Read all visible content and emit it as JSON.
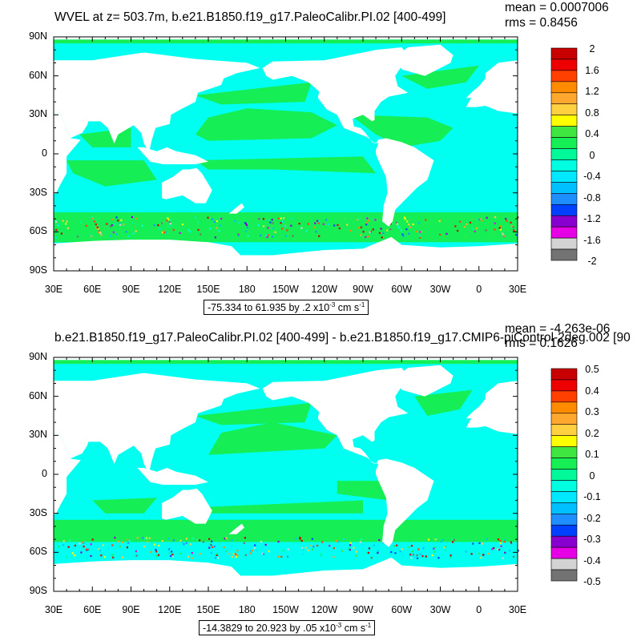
{
  "panels": [
    {
      "title": "WVEL at z= 503.7m, b.e21.B1850.f19_g17.PaleoCalibr.PI.02 [400-499]",
      "mean": "mean = 0.0007006",
      "rms": "rms = 0.8456",
      "range_prefix": "-75.334 to 61.935 by .2 x10",
      "range_exp": "-3",
      "range_unit": " cm s",
      "range_unit_exp": "-1",
      "colorbar_labels": [
        "2",
        "1.6",
        "1.2",
        "0.8",
        "0.4",
        "0",
        "-0.4",
        "-0.8",
        "-1.2",
        "-1.6",
        "-2"
      ]
    },
    {
      "title": "b.e21.B1850.f19_g17.PaleoCalibr.PI.02 [400-499] - b.e21.B1850.f19_g17.CMIP6-piControl-2deg.002 [90",
      "mean": "mean = -4.263e-06",
      "rms": "rms = 0.1626",
      "range_prefix": "-14.3829 to 20.923 by .05 x10",
      "range_exp": "-3",
      "range_unit": " cm s",
      "range_unit_exp": "-1",
      "colorbar_labels": [
        "0.5",
        "0.4",
        "0.3",
        "0.2",
        "0.1",
        "0",
        "-0.1",
        "-0.2",
        "-0.3",
        "-0.4",
        "-0.5"
      ]
    }
  ],
  "axes": {
    "lat_labels": [
      "90N",
      "60N",
      "30N",
      "0",
      "30S",
      "60S",
      "90S"
    ],
    "lon_labels": [
      "30E",
      "60E",
      "90E",
      "120E",
      "150E",
      "180",
      "150W",
      "120W",
      "90W",
      "60W",
      "30W",
      "0",
      "30E"
    ]
  },
  "colors": {
    "ocean_base": "#00fff0",
    "ocean_green": "#15ee55",
    "land": "#ffffff",
    "colorbar": [
      "#c80000",
      "#ee0000",
      "#ff4000",
      "#ff8c00",
      "#ffa830",
      "#ffd040",
      "#ffff00",
      "#40e640",
      "#15ee55",
      "#00fa9a",
      "#00ffe0",
      "#00e8ff",
      "#00c0ff",
      "#1f8fff",
      "#0040ff",
      "#8800d0",
      "#e600e6",
      "#d3d3d3",
      "#737373"
    ]
  }
}
